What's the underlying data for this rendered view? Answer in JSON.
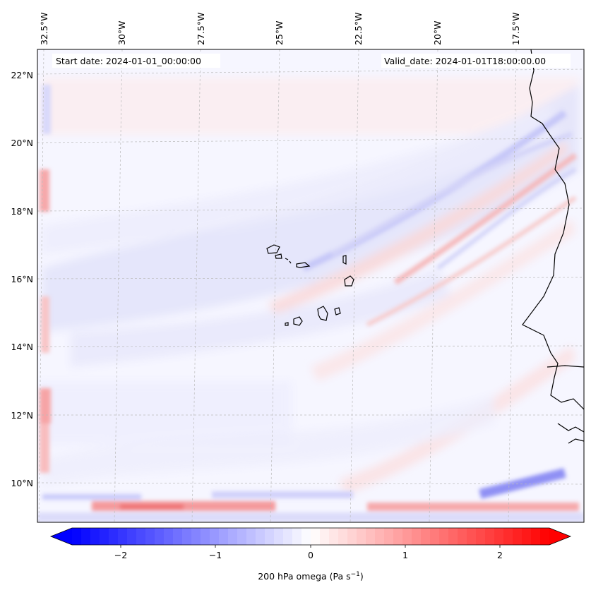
{
  "map": {
    "start_label": "Start date: 2024-01-01_00:00:00",
    "valid_label": "Valid_date: 2024-01-01T18:00:00.00",
    "lon_labels": [
      "32.5°W",
      "30°W",
      "27.5°W",
      "25°W",
      "22.5°W",
      "20°W",
      "17.5°W"
    ],
    "lat_labels": [
      "22°N",
      "20°N",
      "18°N",
      "16°N",
      "14°N",
      "12°N",
      "10°N"
    ]
  },
  "colorbar": {
    "ticks": [
      "−2",
      "−1",
      "0",
      "1",
      "2"
    ],
    "label": "200 hPa omega (Pa s",
    "label_sup": "−1",
    "label_end": ")",
    "range": [
      -2.6,
      2.6
    ],
    "colors": {
      "negative": "#0000ff",
      "zero": "#ffffff",
      "positive": "#ff0000"
    }
  }
}
